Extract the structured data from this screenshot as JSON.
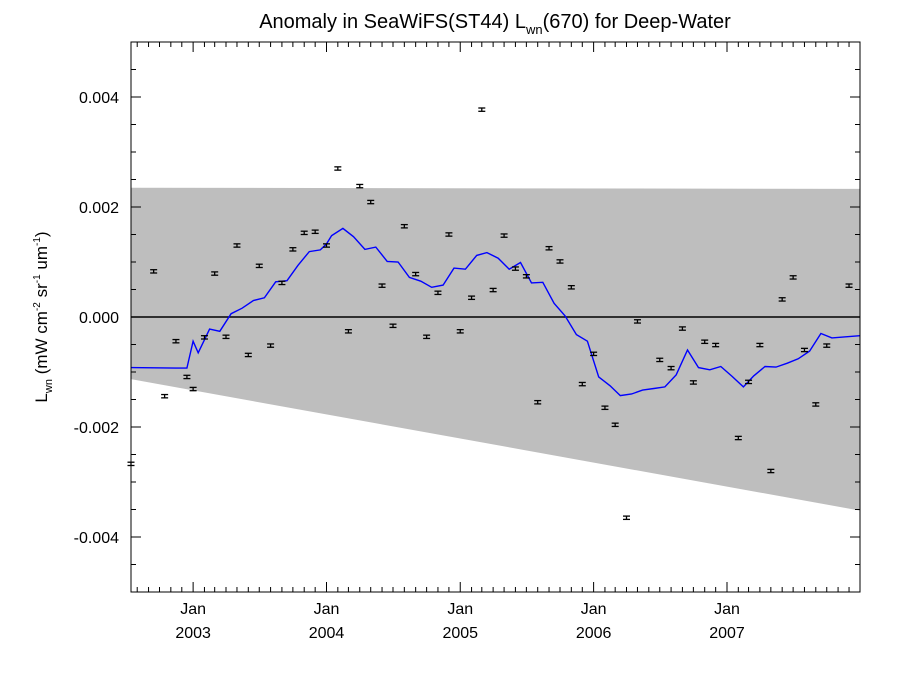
{
  "chart_data": {
    "type": "scatter",
    "title": {
      "prefix": "Anomaly in SeaWiFS(ST44) L",
      "subscript": "wn",
      "suffix": "(670) for Deep-Water"
    },
    "ylabel": {
      "base": "L",
      "base_sub": "wn",
      "units_open": " (mW cm",
      "units_sup1": "-2",
      "units_mid1": " sr",
      "units_sup2": "-1",
      "units_mid2": " um",
      "units_sup3": "-1",
      "units_close": ")"
    },
    "xlabel": "",
    "xlim": [
      "2002-07-15",
      "2007-12-31"
    ],
    "ylim": [
      -0.005,
      0.005
    ],
    "y_ticks": [
      {
        "value": 0.004,
        "label": "0.004"
      },
      {
        "value": 0.002,
        "label": "0.002"
      },
      {
        "value": 0.0,
        "label": "0.000"
      },
      {
        "value": -0.002,
        "label": "-0.002"
      },
      {
        "value": -0.004,
        "label": "-0.004"
      }
    ],
    "x_ticks": [
      {
        "value": "2003-01-01",
        "label1": "Jan",
        "label2": "2003"
      },
      {
        "value": "2004-01-01",
        "label1": "Jan",
        "label2": "2004"
      },
      {
        "value": "2005-01-01",
        "label1": "Jan",
        "label2": "2005"
      },
      {
        "value": "2006-01-01",
        "label1": "Jan",
        "label2": "2006"
      },
      {
        "value": "2007-01-01",
        "label1": "Jan",
        "label2": "2007"
      }
    ],
    "zero_line": 0.0,
    "envelope": {
      "color": "#bebebe",
      "upper": [
        [
          "2002-07-15",
          0.00235
        ],
        [
          "2007-12-31",
          0.00233
        ]
      ],
      "lower": [
        [
          "2002-07-15",
          -0.00113
        ],
        [
          "2007-12-31",
          -0.00352
        ]
      ]
    },
    "series": [
      {
        "type": "errorbar-points",
        "color": "#000000",
        "yerr": 3e-05,
        "points": [
          [
            "2002-07-15",
            -0.00267
          ],
          [
            "2002-09-15",
            0.00083
          ],
          [
            "2002-10-15",
            -0.00144
          ],
          [
            "2002-11-15",
            -0.00044
          ],
          [
            "2002-12-15",
            -0.00109
          ],
          [
            "2003-01-01",
            -0.00131
          ],
          [
            "2003-02-01",
            -0.00037
          ],
          [
            "2003-03-01",
            0.00079
          ],
          [
            "2003-04-01",
            -0.00036
          ],
          [
            "2003-05-01",
            0.0013
          ],
          [
            "2003-06-01",
            -0.00069
          ],
          [
            "2003-07-01",
            0.00093
          ],
          [
            "2003-08-01",
            -0.00052
          ],
          [
            "2003-09-01",
            0.00062
          ],
          [
            "2003-10-01",
            0.00123
          ],
          [
            "2003-11-01",
            0.00153
          ],
          [
            "2003-12-01",
            0.00155
          ],
          [
            "2004-01-01",
            0.0013
          ],
          [
            "2004-02-01",
            0.0027
          ],
          [
            "2004-03-01",
            -0.00026
          ],
          [
            "2004-04-01",
            0.00238
          ],
          [
            "2004-05-01",
            0.00209
          ],
          [
            "2004-06-01",
            0.00057
          ],
          [
            "2004-07-01",
            -0.00016
          ],
          [
            "2004-08-01",
            0.00165
          ],
          [
            "2004-09-01",
            0.00078
          ],
          [
            "2004-10-01",
            -0.00036
          ],
          [
            "2004-11-01",
            0.00044
          ],
          [
            "2004-12-01",
            0.0015
          ],
          [
            "2005-01-01",
            -0.00026
          ],
          [
            "2005-02-01",
            0.00035
          ],
          [
            "2005-03-01",
            0.00377
          ],
          [
            "2005-04-01",
            0.00049
          ],
          [
            "2005-05-01",
            0.00148
          ],
          [
            "2005-06-01",
            0.00088
          ],
          [
            "2005-07-01",
            0.00074
          ],
          [
            "2005-08-01",
            -0.00155
          ],
          [
            "2005-09-01",
            0.00125
          ],
          [
            "2005-10-01",
            0.00101
          ],
          [
            "2005-11-01",
            0.00054
          ],
          [
            "2005-12-01",
            -0.00122
          ],
          [
            "2006-01-01",
            -0.00067
          ],
          [
            "2006-02-01",
            -0.00165
          ],
          [
            "2006-03-01",
            -0.00196
          ],
          [
            "2006-04-01",
            -0.00365
          ],
          [
            "2006-05-01",
            -8e-05
          ],
          [
            "2006-07-01",
            -0.00078
          ],
          [
            "2006-08-01",
            -0.00093
          ],
          [
            "2006-09-01",
            -0.00021
          ],
          [
            "2006-10-01",
            -0.00119
          ],
          [
            "2006-11-01",
            -0.00045
          ],
          [
            "2006-12-01",
            -0.00051
          ],
          [
            "2007-02-01",
            -0.0022
          ],
          [
            "2007-03-01",
            -0.00118
          ],
          [
            "2007-04-01",
            -0.00051
          ],
          [
            "2007-05-01",
            -0.0028
          ],
          [
            "2007-06-01",
            0.00032
          ],
          [
            "2007-07-01",
            0.00072
          ],
          [
            "2007-08-01",
            -0.0006
          ],
          [
            "2007-09-01",
            -0.00159
          ],
          [
            "2007-10-01",
            -0.00052
          ],
          [
            "2007-12-01",
            0.00057
          ]
        ]
      },
      {
        "type": "line",
        "color": "#0000ff",
        "points": [
          [
            "2002-07-15",
            -0.00092
          ],
          [
            "2002-11-15",
            -0.00093
          ],
          [
            "2002-12-15",
            -0.00093
          ],
          [
            "2003-01-01",
            -0.00044
          ],
          [
            "2003-01-15",
            -0.00065
          ],
          [
            "2003-02-15",
            -0.00022
          ],
          [
            "2003-03-15",
            -0.00026
          ],
          [
            "2003-04-15",
            6e-05
          ],
          [
            "2003-05-15",
            0.00016
          ],
          [
            "2003-06-15",
            0.0003
          ],
          [
            "2003-07-15",
            0.00035
          ],
          [
            "2003-08-15",
            0.00064
          ],
          [
            "2003-09-15",
            0.00066
          ],
          [
            "2003-10-15",
            0.00094
          ],
          [
            "2003-11-15",
            0.00119
          ],
          [
            "2003-12-15",
            0.00122
          ],
          [
            "2004-01-01",
            0.00133
          ],
          [
            "2004-01-15",
            0.00148
          ],
          [
            "2004-02-15",
            0.00161
          ],
          [
            "2004-03-15",
            0.00146
          ],
          [
            "2004-04-15",
            0.00123
          ],
          [
            "2004-05-15",
            0.00127
          ],
          [
            "2004-06-15",
            0.00101
          ],
          [
            "2004-07-15",
            0.001
          ],
          [
            "2004-08-15",
            0.00072
          ],
          [
            "2004-09-15",
            0.00065
          ],
          [
            "2004-10-15",
            0.00054
          ],
          [
            "2004-11-15",
            0.00058
          ],
          [
            "2004-12-15",
            0.00089
          ],
          [
            "2005-01-15",
            0.00087
          ],
          [
            "2005-02-15",
            0.00112
          ],
          [
            "2005-03-15",
            0.00117
          ],
          [
            "2005-04-15",
            0.00107
          ],
          [
            "2005-05-15",
            0.00087
          ],
          [
            "2005-06-15",
            0.00099
          ],
          [
            "2005-07-15",
            0.00062
          ],
          [
            "2005-08-15",
            0.00063
          ],
          [
            "2005-09-15",
            0.00025
          ],
          [
            "2005-10-15",
            2e-05
          ],
          [
            "2005-11-15",
            -0.00032
          ],
          [
            "2005-12-15",
            -0.00044
          ],
          [
            "2006-01-15",
            -0.00109
          ],
          [
            "2006-02-15",
            -0.00125
          ],
          [
            "2006-03-15",
            -0.00143
          ],
          [
            "2006-04-15",
            -0.0014
          ],
          [
            "2006-05-15",
            -0.00133
          ],
          [
            "2006-06-15",
            -0.0013
          ],
          [
            "2006-07-15",
            -0.00127
          ],
          [
            "2006-08-15",
            -0.00105
          ],
          [
            "2006-09-15",
            -0.0006
          ],
          [
            "2006-10-15",
            -0.00092
          ],
          [
            "2006-11-15",
            -0.00096
          ],
          [
            "2006-12-15",
            -0.0009
          ],
          [
            "2007-01-15",
            -0.00108
          ],
          [
            "2007-02-15",
            -0.00127
          ],
          [
            "2007-03-15",
            -0.00107
          ],
          [
            "2007-04-15",
            -0.0009
          ],
          [
            "2007-05-15",
            -0.00091
          ],
          [
            "2007-06-15",
            -0.00084
          ],
          [
            "2007-07-15",
            -0.00076
          ],
          [
            "2007-08-15",
            -0.00062
          ],
          [
            "2007-09-15",
            -0.0003
          ],
          [
            "2007-10-15",
            -0.00038
          ],
          [
            "2007-12-31",
            -0.00034
          ]
        ]
      }
    ]
  }
}
